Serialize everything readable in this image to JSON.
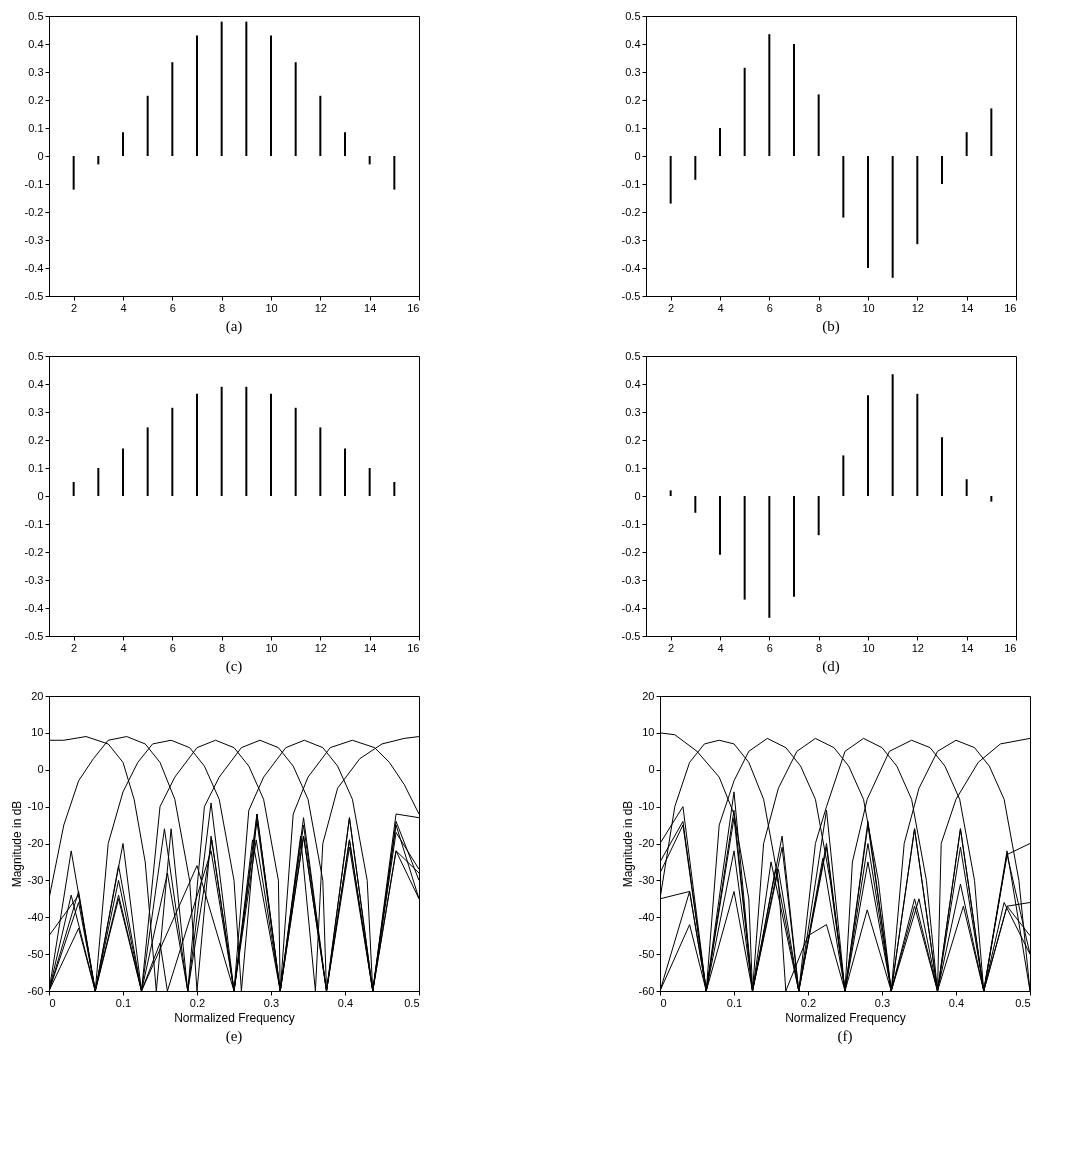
{
  "chart_data": [
    {
      "type": "bar",
      "x": [
        2,
        3,
        4,
        5,
        6,
        7,
        8,
        9,
        10,
        11,
        12,
        13,
        14,
        15
      ],
      "values": [
        -0.12,
        -0.03,
        0.085,
        0.215,
        0.335,
        0.43,
        0.48,
        0.48,
        0.43,
        0.335,
        0.215,
        0.085,
        -0.03,
        -0.12
      ],
      "color": "#000000",
      "xlim": [
        1,
        16
      ],
      "xticks": [
        2,
        4,
        6,
        8,
        10,
        12,
        14,
        16
      ],
      "ylim": [
        -0.5,
        0.5
      ],
      "yticks": [
        -0.5,
        -0.4,
        -0.3,
        -0.2,
        -0.1,
        0,
        0.1,
        0.2,
        0.3,
        0.4,
        0.5
      ],
      "annotations": [
        "(a)"
      ]
    },
    {
      "type": "bar",
      "x": [
        2,
        3,
        4,
        5,
        6,
        7,
        8,
        9,
        10,
        11,
        12,
        13,
        14,
        15
      ],
      "values": [
        -0.17,
        -0.085,
        0.1,
        0.315,
        0.435,
        0.4,
        0.22,
        -0.22,
        -0.4,
        -0.435,
        -0.315,
        -0.1,
        0.085,
        0.17
      ],
      "color": "#000000",
      "xlim": [
        1,
        16
      ],
      "xticks": [
        2,
        4,
        6,
        8,
        10,
        12,
        14,
        16
      ],
      "ylim": [
        -0.5,
        0.5
      ],
      "yticks": [
        -0.5,
        -0.4,
        -0.3,
        -0.2,
        -0.1,
        0,
        0.1,
        0.2,
        0.3,
        0.4,
        0.5
      ],
      "annotations": [
        "(b)"
      ]
    },
    {
      "type": "bar",
      "x": [
        2,
        3,
        4,
        5,
        6,
        7,
        8,
        9,
        10,
        11,
        12,
        13,
        14,
        15
      ],
      "values": [
        0.05,
        0.1,
        0.17,
        0.245,
        0.315,
        0.365,
        0.39,
        0.39,
        0.365,
        0.315,
        0.245,
        0.17,
        0.1,
        0.05
      ],
      "color": "#000000",
      "xlim": [
        1,
        16
      ],
      "xticks": [
        2,
        4,
        6,
        8,
        10,
        12,
        14,
        16
      ],
      "ylim": [
        -0.5,
        0.5
      ],
      "yticks": [
        -0.5,
        -0.4,
        -0.3,
        -0.2,
        -0.1,
        0,
        0.1,
        0.2,
        0.3,
        0.4,
        0.5
      ],
      "annotations": [
        "(c)"
      ]
    },
    {
      "type": "bar",
      "x": [
        2,
        3,
        4,
        5,
        6,
        7,
        8,
        9,
        10,
        11,
        12,
        13,
        14,
        15
      ],
      "values": [
        0.02,
        -0.06,
        -0.21,
        -0.37,
        -0.435,
        -0.36,
        -0.14,
        0.145,
        0.36,
        0.435,
        0.365,
        0.21,
        0.06,
        -0.02
      ],
      "color": "#000000",
      "xlim": [
        1,
        16
      ],
      "xticks": [
        2,
        4,
        6,
        8,
        10,
        12,
        14,
        16
      ],
      "ylim": [
        -0.5,
        0.5
      ],
      "yticks": [
        -0.5,
        -0.4,
        -0.3,
        -0.2,
        -0.1,
        0,
        0.1,
        0.2,
        0.3,
        0.4,
        0.5
      ],
      "annotations": [
        "(d)"
      ]
    },
    {
      "type": "line",
      "xlabel": "Normalized Frequency",
      "ylabel": "Magnitude in dB",
      "xlim": [
        0,
        0.5
      ],
      "xticks": [
        0,
        0.1,
        0.2,
        0.3,
        0.4,
        0.5
      ],
      "ylim": [
        -60,
        20
      ],
      "yticks": [
        -60,
        -50,
        -40,
        -30,
        -20,
        -10,
        0,
        10,
        20
      ],
      "annotations": [
        "(e)"
      ],
      "series": [
        {
          "color": "#000000",
          "x": [
            0,
            0.02,
            0.05,
            0.08,
            0.1,
            0.115,
            0.13,
            0.145,
            0.165,
            0.1875,
            0.219,
            0.25,
            0.281,
            0.3125,
            0.344,
            0.375,
            0.406,
            0.4375,
            0.469,
            0.5
          ],
          "values": [
            8,
            8,
            9,
            7,
            2,
            -8,
            -25,
            -60,
            -16,
            -60,
            -9,
            -60,
            -12,
            -60,
            -13,
            -60,
            -13,
            -60,
            -12,
            -13
          ]
        },
        {
          "color": "#000000",
          "x": [
            0,
            0.02,
            0.04,
            0.06,
            0.08,
            0.105,
            0.13,
            0.15,
            0.17,
            0.19,
            0.2,
            0.219,
            0.25,
            0.281,
            0.3125,
            0.344,
            0.375,
            0.406,
            0.4375,
            0.469,
            0.5
          ],
          "values": [
            -35,
            -15,
            -3,
            3,
            8,
            9,
            7,
            2,
            -8,
            -30,
            -60,
            -18,
            -60,
            -14,
            -60,
            -18,
            -60,
            -19,
            -60,
            -22,
            -28
          ]
        },
        {
          "color": "#000000",
          "x": [
            0,
            0.03,
            0.0625,
            0.08,
            0.1,
            0.12,
            0.14,
            0.165,
            0.19,
            0.21,
            0.23,
            0.25,
            0.26,
            0.281,
            0.3125,
            0.344,
            0.375,
            0.406,
            0.4375,
            0.469,
            0.5
          ],
          "values": [
            -60,
            -22,
            -60,
            -20,
            -6,
            2,
            7,
            8,
            6,
            1,
            -8,
            -30,
            -60,
            -12,
            -60,
            -15,
            -60,
            -13,
            -60,
            -14,
            -30
          ]
        },
        {
          "color": "#000000",
          "x": [
            0,
            0.03,
            0.0625,
            0.094,
            0.125,
            0.15,
            0.17,
            0.2,
            0.225,
            0.25,
            0.27,
            0.29,
            0.31,
            0.3125,
            0.344,
            0.375,
            0.406,
            0.4375,
            0.469,
            0.5
          ],
          "values": [
            -60,
            -34,
            -60,
            -26,
            -60,
            -10,
            -2,
            6,
            8,
            6,
            1,
            -8,
            -30,
            -60,
            -18,
            -60,
            -21,
            -60,
            -22,
            -35
          ]
        },
        {
          "color": "#000000",
          "x": [
            0,
            0.04,
            0.0625,
            0.094,
            0.125,
            0.156,
            0.1875,
            0.21,
            0.23,
            0.26,
            0.285,
            0.31,
            0.33,
            0.35,
            0.37,
            0.375,
            0.406,
            0.4375,
            0.469,
            0.5
          ],
          "values": [
            -60,
            -36,
            -60,
            -34,
            -60,
            -16,
            -60,
            -10,
            -2,
            6,
            8,
            6,
            1,
            -8,
            -30,
            -60,
            -19,
            -60,
            -17,
            -27
          ]
        },
        {
          "color": "#000000",
          "x": [
            0,
            0.04,
            0.0625,
            0.094,
            0.125,
            0.16,
            0.1875,
            0.22,
            0.25,
            0.27,
            0.29,
            0.32,
            0.345,
            0.37,
            0.39,
            0.41,
            0.43,
            0.4375,
            0.469,
            0.5
          ],
          "values": [
            -60,
            -43,
            -60,
            -35,
            -60,
            -28,
            -60,
            -19,
            -60,
            -11,
            -2,
            6,
            8,
            6,
            1,
            -8,
            -30,
            -60,
            -15,
            -35
          ]
        },
        {
          "color": "#000000",
          "x": [
            0,
            0.04,
            0.0625,
            0.094,
            0.125,
            0.15,
            0.16,
            0.219,
            0.25,
            0.275,
            0.3125,
            0.33,
            0.35,
            0.38,
            0.41,
            0.44,
            0.46,
            0.48,
            0.5
          ],
          "values": [
            -60,
            -33,
            -60,
            -30,
            -60,
            -47,
            -60,
            -22,
            -60,
            -19,
            -60,
            -12,
            -2,
            6,
            8,
            6,
            2,
            -4,
            -12
          ]
        },
        {
          "color": "#000000",
          "x": [
            0,
            0.04,
            0.0625,
            0.1,
            0.125,
            0.2,
            0.25,
            0.28,
            0.3125,
            0.34,
            0.36,
            0.37,
            0.39,
            0.42,
            0.45,
            0.48,
            0.5
          ],
          "values": [
            -45,
            -34,
            -60,
            -20,
            -60,
            -26,
            -60,
            -19,
            -60,
            -18,
            -60,
            -20,
            -5,
            3,
            7,
            8.5,
            9
          ]
        }
      ]
    },
    {
      "type": "line",
      "xlabel": "Normalized Frequency",
      "ylabel": "Magnitude in dB",
      "xlim": [
        0,
        0.5
      ],
      "xticks": [
        0,
        0.1,
        0.2,
        0.3,
        0.4,
        0.5
      ],
      "ylim": [
        -60,
        20
      ],
      "yticks": [
        -60,
        -50,
        -40,
        -30,
        -20,
        -10,
        0,
        10,
        20
      ],
      "annotations": [
        "(f)"
      ],
      "series": [
        {
          "color": "#000000",
          "x": [
            0,
            0.02,
            0.05,
            0.08,
            0.1,
            0.12,
            0.125,
            0.156,
            0.1875,
            0.225,
            0.25,
            0.281,
            0.3125,
            0.344,
            0.375,
            0.406,
            0.4375,
            0.469,
            0.5
          ],
          "values": [
            10,
            9.5,
            5,
            -2,
            -12,
            -35,
            -60,
            -27,
            -60,
            -20,
            -60,
            -15,
            -60,
            -16,
            -60,
            -16,
            -60,
            -23,
            -20
          ]
        },
        {
          "color": "#000000",
          "x": [
            0,
            0.02,
            0.04,
            0.06,
            0.08,
            0.1,
            0.12,
            0.14,
            0.16,
            0.17,
            0.2,
            0.225,
            0.25,
            0.281,
            0.3125,
            0.344,
            0.375,
            0.406,
            0.4375,
            0.469,
            0.5
          ],
          "values": [
            -35,
            -10,
            2,
            7,
            8,
            7,
            2,
            -8,
            -30,
            -60,
            -45,
            -42,
            -60,
            -25,
            -60,
            -35,
            -60,
            -31,
            -60,
            -37,
            -36
          ]
        },
        {
          "color": "#000000",
          "x": [
            0,
            0.031,
            0.0625,
            0.08,
            0.1,
            0.12,
            0.145,
            0.17,
            0.19,
            0.21,
            0.23,
            0.25,
            0.281,
            0.3125,
            0.344,
            0.375,
            0.406,
            0.4375,
            0.469,
            0.5
          ],
          "values": [
            -20,
            -10,
            -60,
            -15,
            -3,
            5,
            8.5,
            6,
            1,
            -8,
            -30,
            -60,
            -14,
            -60,
            -16,
            -60,
            -16,
            -60,
            -23,
            -50
          ]
        },
        {
          "color": "#000000",
          "x": [
            0,
            0.031,
            0.0625,
            0.1,
            0.125,
            0.14,
            0.16,
            0.185,
            0.21,
            0.235,
            0.255,
            0.275,
            0.295,
            0.3125,
            0.344,
            0.375,
            0.406,
            0.4375,
            0.469,
            0.5
          ],
          "values": [
            -25,
            -14,
            -60,
            -6,
            -60,
            -20,
            -5,
            5,
            8.5,
            6,
            1,
            -8,
            -30,
            -60,
            -37,
            -60,
            -21,
            -60,
            -37,
            -45
          ]
        },
        {
          "color": "#000000",
          "x": [
            0,
            0.031,
            0.0625,
            0.1,
            0.125,
            0.165,
            0.1875,
            0.21,
            0.225,
            0.25,
            0.275,
            0.3,
            0.32,
            0.34,
            0.36,
            0.375,
            0.41,
            0.4375,
            0.465,
            0.5
          ],
          "values": [
            -28,
            -15,
            -60,
            -11,
            -60,
            -18,
            -60,
            -20,
            -10,
            5,
            8.5,
            6,
            1,
            -8,
            -30,
            -60,
            -37,
            -60,
            -36,
            -50
          ]
        },
        {
          "color": "#000000",
          "x": [
            0,
            0.04,
            0.0625,
            0.1,
            0.125,
            0.165,
            0.1875,
            0.225,
            0.25,
            0.26,
            0.28,
            0.31,
            0.34,
            0.365,
            0.385,
            0.405,
            0.425,
            0.4375,
            0.469,
            0.5
          ],
          "values": [
            -35,
            -33,
            -60,
            -22,
            -60,
            -21,
            -60,
            -11,
            -60,
            -25,
            -8,
            5,
            8,
            6,
            1,
            -8,
            -30,
            -60,
            -22,
            -60
          ]
        },
        {
          "color": "#000000",
          "x": [
            0,
            0.04,
            0.0625,
            0.1,
            0.125,
            0.15,
            0.1875,
            0.22,
            0.25,
            0.28,
            0.3125,
            0.33,
            0.35,
            0.375,
            0.4,
            0.425,
            0.445,
            0.465,
            0.485,
            0.5
          ],
          "values": [
            -60,
            -42,
            -60,
            -33,
            -60,
            -25,
            -60,
            -24,
            -60,
            -38,
            -60,
            -20,
            -5,
            5,
            8,
            6,
            1,
            -8,
            -30,
            -60
          ]
        },
        {
          "color": "#000000",
          "x": [
            0,
            0.04,
            0.0625,
            0.1,
            0.125,
            0.16,
            0.1875,
            0.225,
            0.25,
            0.281,
            0.3125,
            0.35,
            0.375,
            0.38,
            0.4,
            0.43,
            0.46,
            0.5
          ],
          "values": [
            -60,
            -33,
            -60,
            -13,
            -60,
            -27,
            -60,
            -21,
            -60,
            -20,
            -60,
            -35,
            -60,
            -20,
            -8,
            2,
            7,
            8.5
          ]
        }
      ]
    }
  ]
}
